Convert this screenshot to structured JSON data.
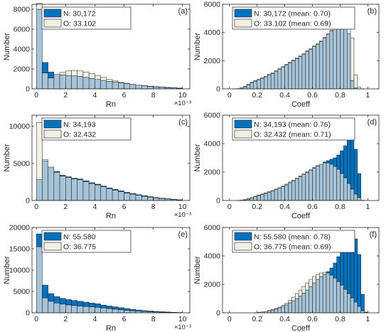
{
  "colors": {
    "new_fill": "#0072bd",
    "old_fill": "#f2efe4",
    "overlap_fill": "#a6c3d7",
    "edge": "#1a1a1a",
    "axis": "#262626"
  },
  "chart_data": [
    {
      "type": "bar",
      "panel_label": "(a)",
      "xlabel": "Rn",
      "ylabel": "Number",
      "x_exponent": "×10⁻³",
      "xlim": [
        -0.3,
        10.5
      ],
      "ylim": [
        0,
        8500
      ],
      "xticks": [
        0,
        2,
        4,
        6,
        8,
        10
      ],
      "yticks": [
        0,
        2000,
        4000,
        6000,
        8000
      ],
      "bin_width": 0.4,
      "x": [
        0.2,
        0.6,
        1.0,
        1.4,
        1.8,
        2.2,
        2.6,
        3.0,
        3.4,
        3.8,
        4.2,
        4.6,
        5.0,
        5.4,
        5.8,
        6.2,
        6.6,
        7.0,
        7.4,
        7.8,
        8.2,
        8.6,
        9.0,
        9.4,
        9.8
      ],
      "series": [
        {
          "name": "N: 30,172",
          "values": [
            8000,
            2650,
            1700,
            1450,
            1400,
            1350,
            1300,
            1250,
            1150,
            1050,
            950,
            850,
            750,
            680,
            600,
            520,
            440,
            380,
            320,
            270,
            220,
            180,
            150,
            110,
            80
          ]
        },
        {
          "name": "O: 33.102",
          "values": [
            8600,
            1600,
            1100,
            1450,
            1650,
            1800,
            1850,
            1800,
            1700,
            1550,
            1350,
            1150,
            950,
            800,
            650,
            540,
            450,
            380,
            310,
            250,
            200,
            160,
            120,
            90,
            60
          ]
        }
      ]
    },
    {
      "type": "bar",
      "panel_label": "(b)",
      "xlabel": "Coeff",
      "ylabel": "Number",
      "xlim": [
        -0.05,
        1.08
      ],
      "ylim": [
        0,
        6000
      ],
      "xticks": [
        0,
        0.2,
        0.4,
        0.6,
        0.8,
        1
      ],
      "yticks": [
        0,
        2000,
        4000,
        6000
      ],
      "bin_width": 0.025,
      "x": [
        0.0125,
        0.0375,
        0.0625,
        0.0875,
        0.1125,
        0.1375,
        0.1625,
        0.1875,
        0.2125,
        0.2375,
        0.2625,
        0.2875,
        0.3125,
        0.3375,
        0.3625,
        0.3875,
        0.4125,
        0.4375,
        0.4625,
        0.4875,
        0.5125,
        0.5375,
        0.5625,
        0.5875,
        0.6125,
        0.6375,
        0.6625,
        0.6875,
        0.7125,
        0.7375,
        0.7625,
        0.7875,
        0.8125,
        0.8375,
        0.8625,
        0.8875,
        0.9125,
        0.9375,
        0.9625,
        0.9875
      ],
      "series": [
        {
          "name": "N: 30,172 (mean: 0.70)",
          "values": [
            0,
            5,
            20,
            60,
            150,
            300,
            450,
            550,
            650,
            750,
            850,
            1000,
            1100,
            1250,
            1400,
            1550,
            1700,
            1850,
            2000,
            2150,
            2300,
            2450,
            2650,
            2800,
            3000,
            3150,
            3350,
            3600,
            3850,
            4100,
            4350,
            4550,
            4750,
            4700,
            3900,
            600,
            60,
            10,
            0,
            0
          ]
        },
        {
          "name": "O: 33.102 (mean: 0.69)",
          "values": [
            0,
            5,
            20,
            70,
            180,
            330,
            480,
            580,
            680,
            790,
            900,
            1050,
            1150,
            1300,
            1450,
            1600,
            1750,
            1900,
            2050,
            2200,
            2350,
            2500,
            2700,
            2850,
            3050,
            3200,
            3400,
            3650,
            3900,
            4150,
            4400,
            4600,
            4850,
            5050,
            5000,
            3600,
            1000,
            120,
            10,
            0
          ]
        }
      ]
    },
    {
      "type": "bar",
      "panel_label": "(c)",
      "xlabel": "Rn",
      "ylabel": "Number",
      "x_exponent": "×10⁻³",
      "xlim": [
        -0.3,
        10.5
      ],
      "ylim": [
        0,
        11500
      ],
      "xticks": [
        0,
        2,
        4,
        6,
        8,
        10
      ],
      "yticks": [
        0,
        5000,
        10000
      ],
      "bin_width": 0.4,
      "x": [
        0.2,
        0.6,
        1.0,
        1.4,
        1.8,
        2.2,
        2.6,
        3.0,
        3.4,
        3.8,
        4.2,
        4.6,
        5.0,
        5.4,
        5.8,
        6.2,
        6.6,
        7.0,
        7.4,
        7.8,
        8.2,
        8.6,
        9.0,
        9.4,
        9.8
      ],
      "series": [
        {
          "name": "N: 34,193",
          "values": [
            2800,
            5300,
            4500,
            3900,
            3400,
            3200,
            3000,
            2900,
            2650,
            2400,
            2200,
            1950,
            1700,
            1500,
            1300,
            1100,
            950,
            780,
            650,
            520,
            400,
            320,
            240,
            160,
            100
          ]
        },
        {
          "name": "O: 32.432",
          "values": [
            10500,
            5500,
            4500,
            3800,
            3300,
            3100,
            2900,
            2800,
            2550,
            2300,
            2100,
            1850,
            1600,
            1400,
            1200,
            1000,
            850,
            700,
            560,
            450,
            350,
            270,
            200,
            130,
            80
          ]
        }
      ]
    },
    {
      "type": "bar",
      "panel_label": "(d)",
      "xlabel": "Coeff",
      "ylabel": "Number",
      "xlim": [
        -0.05,
        1.08
      ],
      "ylim": [
        0,
        6000
      ],
      "xticks": [
        0,
        0.2,
        0.4,
        0.6,
        0.8,
        1
      ],
      "yticks": [
        0,
        2000,
        4000,
        6000
      ],
      "bin_width": 0.025,
      "x": [
        0.0125,
        0.0375,
        0.0625,
        0.0875,
        0.1125,
        0.1375,
        0.1625,
        0.1875,
        0.2125,
        0.2375,
        0.2625,
        0.2875,
        0.3125,
        0.3375,
        0.3625,
        0.3875,
        0.4125,
        0.4375,
        0.4625,
        0.4875,
        0.5125,
        0.5375,
        0.5625,
        0.5875,
        0.6125,
        0.6375,
        0.6625,
        0.6875,
        0.7125,
        0.7375,
        0.7625,
        0.7875,
        0.8125,
        0.8375,
        0.8625,
        0.8875,
        0.9125,
        0.9375,
        0.9625,
        0.9875
      ],
      "series": [
        {
          "name": "N: 34,193 (mean: 0.76)",
          "values": [
            0,
            0,
            5,
            20,
            50,
            100,
            180,
            280,
            350,
            420,
            500,
            580,
            660,
            760,
            860,
            980,
            1100,
            1250,
            1380,
            1520,
            1680,
            1820,
            1980,
            2120,
            2280,
            2420,
            2550,
            2700,
            2800,
            2900,
            3000,
            3200,
            3500,
            3850,
            4400,
            4700,
            3600,
            1900,
            20,
            0
          ]
        },
        {
          "name": "O: 32.432 (mean: 0.71)",
          "values": [
            0,
            0,
            5,
            25,
            60,
            120,
            200,
            300,
            380,
            460,
            540,
            620,
            700,
            800,
            900,
            1020,
            1150,
            1300,
            1430,
            1570,
            1730,
            1870,
            2030,
            2170,
            2320,
            2450,
            2550,
            2650,
            2650,
            2550,
            2400,
            2200,
            1900,
            1600,
            1200,
            800,
            450,
            200,
            10,
            0
          ]
        }
      ]
    },
    {
      "type": "bar",
      "panel_label": "(e)",
      "xlabel": "Rn",
      "ylabel": "Number",
      "x_exponent": "×10⁻³",
      "xlim": [
        -0.3,
        10.5
      ],
      "ylim": [
        0,
        20000
      ],
      "xticks": [
        0,
        2,
        4,
        6,
        8,
        10
      ],
      "yticks": [
        0,
        5000,
        10000,
        15000,
        20000
      ],
      "bin_width": 0.4,
      "x": [
        0.2,
        0.6,
        1.0,
        1.4,
        1.8,
        2.2,
        2.6,
        3.0,
        3.4,
        3.8,
        4.2,
        4.6,
        5.0,
        5.4,
        5.8,
        6.2,
        6.6,
        7.0,
        7.4,
        7.8,
        8.2,
        8.6,
        9.0,
        9.4,
        9.8
      ],
      "series": [
        {
          "name": "N: 55.580",
          "values": [
            18500,
            6500,
            4500,
            3800,
            3400,
            3100,
            2900,
            2700,
            2500,
            2300,
            2100,
            1800,
            1600,
            1400,
            1200,
            1000,
            800,
            650,
            520,
            420,
            330,
            250,
            190,
            130,
            80
          ]
        },
        {
          "name": "O: 36.775",
          "values": [
            15500,
            3500,
            2700,
            2300,
            2050,
            1850,
            1700,
            1600,
            1500,
            1400,
            1280,
            1150,
            1000,
            850,
            700,
            580,
            480,
            400,
            320,
            260,
            200,
            150,
            110,
            80,
            50
          ]
        }
      ]
    },
    {
      "type": "bar",
      "panel_label": "(f)",
      "xlabel": "Coeff",
      "ylabel": "Number",
      "xlim": [
        -0.05,
        1.08
      ],
      "ylim": [
        0,
        6000
      ],
      "xticks": [
        0,
        0.2,
        0.4,
        0.6,
        0.8,
        1
      ],
      "yticks": [
        0,
        2000,
        4000,
        6000
      ],
      "bin_width": 0.025,
      "x": [
        0.0125,
        0.0375,
        0.0625,
        0.0875,
        0.1125,
        0.1375,
        0.1625,
        0.1875,
        0.2125,
        0.2375,
        0.2625,
        0.2875,
        0.3125,
        0.3375,
        0.3625,
        0.3875,
        0.4125,
        0.4375,
        0.4625,
        0.4875,
        0.5125,
        0.5375,
        0.5625,
        0.5875,
        0.6125,
        0.6375,
        0.6625,
        0.6875,
        0.7125,
        0.7375,
        0.7625,
        0.7875,
        0.8125,
        0.8375,
        0.8625,
        0.8875,
        0.9125,
        0.9375,
        0.9625,
        0.9875
      ],
      "series": [
        {
          "name": "N: 55.580 (mean: 0.78)",
          "values": [
            0,
            0,
            0,
            0,
            0,
            0,
            0,
            10,
            30,
            60,
            100,
            150,
            200,
            270,
            350,
            450,
            560,
            700,
            850,
            1000,
            1180,
            1380,
            1600,
            1850,
            2100,
            2350,
            2550,
            2700,
            2900,
            3150,
            3500,
            3950,
            4400,
            4800,
            5200,
            5500,
            5200,
            4100,
            1300,
            50
          ]
        },
        {
          "name": "O: 36.775 (mean: 0.69)",
          "values": [
            0,
            0,
            0,
            0,
            0,
            0,
            0,
            10,
            30,
            60,
            100,
            160,
            220,
            300,
            400,
            520,
            680,
            880,
            1100,
            1350,
            1600,
            1850,
            2100,
            2350,
            2550,
            2700,
            2800,
            2850,
            2800,
            2650,
            2450,
            2200,
            1950,
            1650,
            1350,
            1050,
            750,
            450,
            150,
            10
          ]
        }
      ]
    }
  ]
}
